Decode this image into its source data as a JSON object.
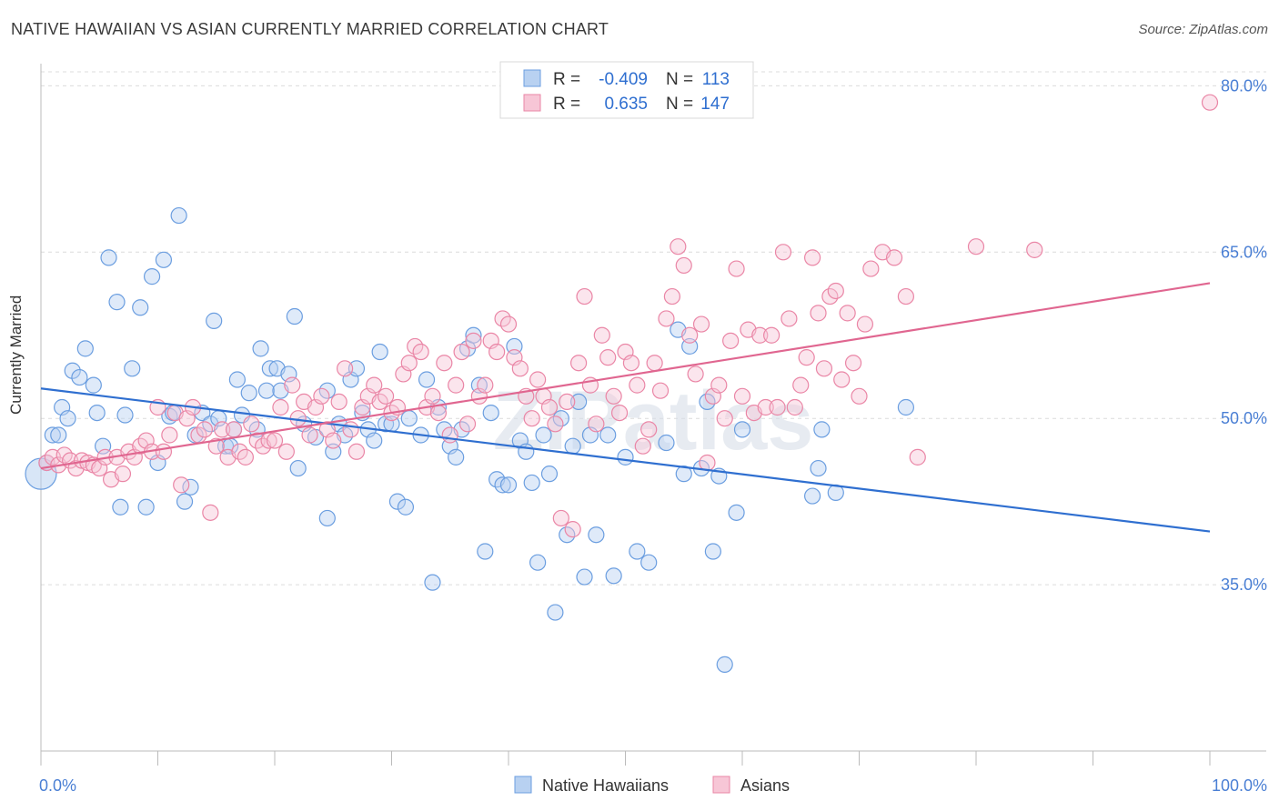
{
  "header": {
    "title": "NATIVE HAWAIIAN VS ASIAN CURRENTLY MARRIED CORRELATION CHART",
    "source": "Source: ZipAtlas.com"
  },
  "colors": {
    "blue": "#6b9ee0",
    "blue_fill": "#b8d1f1",
    "blue_line": "#2f6fd0",
    "pink": "#ea86a6",
    "pink_fill": "#f7c6d6",
    "pink_line": "#e06690",
    "tick_label": "#4a7fd4"
  },
  "legend_top": {
    "rows": [
      {
        "r_label": "R =",
        "r_value": "-0.409",
        "n_label": "N =",
        "n_value": "113"
      },
      {
        "r_label": "R =",
        "r_value": "0.635",
        "n_label": "N =",
        "n_value": "147"
      }
    ]
  },
  "legend_bottom": {
    "items": [
      "Native Hawaiians",
      "Asians"
    ]
  },
  "watermark": "ZIPatlas",
  "chart_data": {
    "type": "scatter",
    "xlabel": "",
    "ylabel": "Currently Married",
    "xlim": [
      0,
      100
    ],
    "ylim": [
      20,
      82
    ],
    "x_tick_labels": [
      "0.0%",
      "100.0%"
    ],
    "y_ticks": [
      35,
      50,
      65,
      80
    ],
    "y_tick_labels": [
      "35.0%",
      "50.0%",
      "65.0%",
      "80.0%"
    ],
    "grid": "horizontal dashed",
    "legend_position": "top-center",
    "series": [
      {
        "name": "Native Hawaiians",
        "r": -0.409,
        "n": 113,
        "trend": [
          [
            0,
            52.7
          ],
          [
            100,
            39.8
          ]
        ],
        "points": [
          [
            0,
            45
          ],
          [
            0.5,
            46
          ],
          [
            1,
            48.5
          ],
          [
            1.5,
            48.5
          ],
          [
            1.8,
            51
          ],
          [
            2.3,
            50
          ],
          [
            2.7,
            54.3
          ],
          [
            3.3,
            53.7
          ],
          [
            3.8,
            56.3
          ],
          [
            4.5,
            53
          ],
          [
            4.8,
            50.5
          ],
          [
            5.3,
            47.5
          ],
          [
            5.8,
            64.5
          ],
          [
            6.5,
            60.5
          ],
          [
            6.8,
            42
          ],
          [
            7.2,
            50.3
          ],
          [
            7.8,
            54.5
          ],
          [
            8.5,
            60
          ],
          [
            9,
            42
          ],
          [
            9.5,
            62.8
          ],
          [
            10,
            46
          ],
          [
            10.5,
            64.3
          ],
          [
            11,
            50.2
          ],
          [
            11.3,
            50.5
          ],
          [
            11.8,
            68.3
          ],
          [
            12.3,
            42.5
          ],
          [
            12.8,
            43.8
          ],
          [
            13.2,
            48.5
          ],
          [
            13.8,
            50.5
          ],
          [
            14.5,
            49.5
          ],
          [
            14.8,
            58.8
          ],
          [
            15.2,
            50
          ],
          [
            15.8,
            47.5
          ],
          [
            16.2,
            47.5
          ],
          [
            16.5,
            49
          ],
          [
            16.8,
            53.5
          ],
          [
            17.2,
            50.3
          ],
          [
            17.8,
            52.3
          ],
          [
            18.5,
            49
          ],
          [
            18.8,
            56.3
          ],
          [
            19.3,
            52.5
          ],
          [
            19.6,
            54.5
          ],
          [
            20.2,
            54.5
          ],
          [
            20.5,
            52.5
          ],
          [
            21.2,
            54
          ],
          [
            21.7,
            59.2
          ],
          [
            22,
            45.5
          ],
          [
            22.5,
            49.5
          ],
          [
            23.5,
            48.3
          ],
          [
            24.5,
            52.5
          ],
          [
            24.5,
            41
          ],
          [
            25,
            47
          ],
          [
            25.5,
            49.5
          ],
          [
            26,
            48.5
          ],
          [
            26.5,
            53.5
          ],
          [
            27,
            54.5
          ],
          [
            27.5,
            50.5
          ],
          [
            28,
            49
          ],
          [
            28.5,
            48
          ],
          [
            29,
            56
          ],
          [
            29.5,
            49.5
          ],
          [
            30,
            49.5
          ],
          [
            30.5,
            42.5
          ],
          [
            31.2,
            42
          ],
          [
            31.5,
            50
          ],
          [
            32.5,
            48.5
          ],
          [
            33,
            53.5
          ],
          [
            33.5,
            35.2
          ],
          [
            34,
            51
          ],
          [
            34.5,
            49
          ],
          [
            35,
            47.5
          ],
          [
            35.5,
            46.5
          ],
          [
            36,
            49
          ],
          [
            36.5,
            56.3
          ],
          [
            37,
            57.5
          ],
          [
            37.5,
            53
          ],
          [
            38,
            38
          ],
          [
            38.5,
            50.5
          ],
          [
            39,
            44.5
          ],
          [
            39.5,
            44
          ],
          [
            40,
            44
          ],
          [
            40.5,
            56.5
          ],
          [
            41,
            48
          ],
          [
            41.5,
            47
          ],
          [
            42,
            44.2
          ],
          [
            42.5,
            37
          ],
          [
            43,
            48.5
          ],
          [
            43.5,
            45
          ],
          [
            44,
            32.5
          ],
          [
            44.5,
            50
          ],
          [
            45,
            39.5
          ],
          [
            45.5,
            47.5
          ],
          [
            46,
            51.5
          ],
          [
            46.5,
            35.7
          ],
          [
            47,
            48.5
          ],
          [
            47.5,
            39.5
          ],
          [
            48.5,
            48.5
          ],
          [
            49,
            35.8
          ],
          [
            50,
            46.5
          ],
          [
            51,
            38
          ],
          [
            52,
            37
          ],
          [
            53.5,
            47.8
          ],
          [
            54.5,
            58
          ],
          [
            55,
            45
          ],
          [
            55.5,
            56.5
          ],
          [
            56.5,
            45.5
          ],
          [
            57,
            51.5
          ],
          [
            57.5,
            38
          ],
          [
            58,
            44.8
          ],
          [
            58.5,
            27.8
          ],
          [
            59.5,
            41.5
          ],
          [
            60,
            49
          ],
          [
            66,
            43
          ],
          [
            66.5,
            45.5
          ],
          [
            66.8,
            49
          ],
          [
            68,
            43.3
          ],
          [
            74,
            51
          ]
        ]
      },
      {
        "name": "Asians",
        "r": 0.635,
        "n": 147,
        "trend": [
          [
            0,
            45.5
          ],
          [
            100,
            62.2
          ]
        ],
        "points": [
          [
            0.5,
            46
          ],
          [
            1,
            46.5
          ],
          [
            1.5,
            45.8
          ],
          [
            2,
            46.7
          ],
          [
            2.5,
            46.2
          ],
          [
            3,
            45.5
          ],
          [
            3.5,
            46.2
          ],
          [
            4,
            46
          ],
          [
            4.5,
            45.8
          ],
          [
            5,
            45.5
          ],
          [
            5.5,
            46.5
          ],
          [
            6,
            44.5
          ],
          [
            6.5,
            46.5
          ],
          [
            7,
            45
          ],
          [
            7.5,
            47
          ],
          [
            8,
            46.5
          ],
          [
            8.5,
            47.5
          ],
          [
            9,
            48
          ],
          [
            9.5,
            47
          ],
          [
            10,
            51
          ],
          [
            10.5,
            47
          ],
          [
            11,
            48.5
          ],
          [
            11.5,
            50.5
          ],
          [
            12,
            44
          ],
          [
            12.5,
            50
          ],
          [
            13,
            51
          ],
          [
            13.5,
            48.5
          ],
          [
            14,
            49
          ],
          [
            14.5,
            41.5
          ],
          [
            15,
            47.5
          ],
          [
            15.5,
            49
          ],
          [
            16,
            46.5
          ],
          [
            16.5,
            49
          ],
          [
            17,
            47
          ],
          [
            17.5,
            46.5
          ],
          [
            18,
            49.5
          ],
          [
            18.5,
            48
          ],
          [
            19,
            47.5
          ],
          [
            19.5,
            48
          ],
          [
            20,
            48
          ],
          [
            20.5,
            51
          ],
          [
            21,
            47
          ],
          [
            21.5,
            53
          ],
          [
            22,
            50
          ],
          [
            22.5,
            51.5
          ],
          [
            23,
            48.5
          ],
          [
            23.5,
            51
          ],
          [
            24,
            52
          ],
          [
            24.5,
            49
          ],
          [
            25,
            48
          ],
          [
            25.5,
            51.5
          ],
          [
            26,
            54.5
          ],
          [
            26.5,
            49
          ],
          [
            27,
            47
          ],
          [
            27.5,
            51
          ],
          [
            28,
            52
          ],
          [
            28.5,
            53
          ],
          [
            29,
            51.5
          ],
          [
            29.5,
            52
          ],
          [
            30,
            50.5
          ],
          [
            30.5,
            51
          ],
          [
            31,
            54
          ],
          [
            31.5,
            55
          ],
          [
            32,
            56.5
          ],
          [
            32.5,
            56
          ],
          [
            33,
            51
          ],
          [
            33.5,
            52
          ],
          [
            34,
            50.5
          ],
          [
            34.5,
            55
          ],
          [
            35,
            48.5
          ],
          [
            35.5,
            53
          ],
          [
            36,
            56
          ],
          [
            36.5,
            49.5
          ],
          [
            37,
            57
          ],
          [
            37.5,
            52
          ],
          [
            38,
            53
          ],
          [
            38.5,
            57
          ],
          [
            39,
            56
          ],
          [
            39.5,
            59
          ],
          [
            40,
            58.5
          ],
          [
            40.5,
            55.5
          ],
          [
            41,
            54.5
          ],
          [
            41.5,
            52
          ],
          [
            42,
            50
          ],
          [
            42.5,
            53.5
          ],
          [
            43,
            52
          ],
          [
            43.5,
            51
          ],
          [
            44,
            49.5
          ],
          [
            44.5,
            41
          ],
          [
            45,
            51.5
          ],
          [
            45.5,
            40
          ],
          [
            46,
            55
          ],
          [
            46.5,
            61
          ],
          [
            47,
            53
          ],
          [
            47.5,
            49.5
          ],
          [
            48,
            57.5
          ],
          [
            48.5,
            55.5
          ],
          [
            49,
            52
          ],
          [
            49.5,
            50.5
          ],
          [
            50,
            56
          ],
          [
            50.5,
            55
          ],
          [
            51,
            53
          ],
          [
            51.5,
            47.5
          ],
          [
            52,
            49
          ],
          [
            52.5,
            55
          ],
          [
            53,
            52.5
          ],
          [
            53.5,
            59
          ],
          [
            54,
            61
          ],
          [
            54.5,
            65.5
          ],
          [
            55,
            63.8
          ],
          [
            55.5,
            57.5
          ],
          [
            56,
            54
          ],
          [
            56.5,
            58.5
          ],
          [
            57,
            46
          ],
          [
            57.5,
            52
          ],
          [
            58,
            53
          ],
          [
            58.5,
            50
          ],
          [
            59,
            57
          ],
          [
            59.5,
            63.5
          ],
          [
            60,
            52
          ],
          [
            60.5,
            58
          ],
          [
            61,
            50.5
          ],
          [
            61.5,
            57.5
          ],
          [
            62,
            51
          ],
          [
            62.5,
            57.5
          ],
          [
            63,
            51
          ],
          [
            63.5,
            65
          ],
          [
            64,
            59
          ],
          [
            64.5,
            51
          ],
          [
            65,
            53
          ],
          [
            65.5,
            55.5
          ],
          [
            66,
            64.5
          ],
          [
            66.5,
            59.5
          ],
          [
            67,
            54.5
          ],
          [
            67.5,
            61
          ],
          [
            68,
            61.5
          ],
          [
            68.5,
            53.5
          ],
          [
            69,
            59.5
          ],
          [
            69.5,
            55
          ],
          [
            70,
            52
          ],
          [
            70.5,
            58.5
          ],
          [
            71,
            63.5
          ],
          [
            72,
            65
          ],
          [
            73,
            64.5
          ],
          [
            74,
            61
          ],
          [
            75,
            46.5
          ],
          [
            80,
            65.5
          ],
          [
            85,
            65.2
          ],
          [
            100,
            78.5
          ]
        ]
      }
    ]
  }
}
